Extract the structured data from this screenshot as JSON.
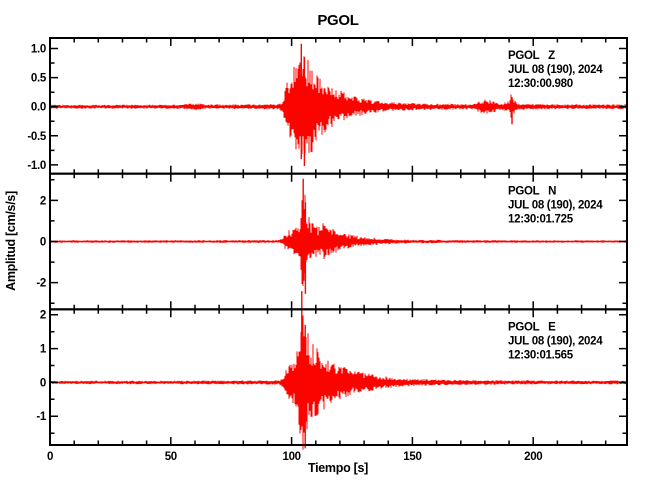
{
  "window": {
    "title": "PGOL"
  },
  "chart_data": {
    "type": "line",
    "title": "PGOL",
    "xlabel": "Tiempo [s]",
    "ylabel": "Amplitud [cm/s/s]",
    "trace_color": "#fb0400",
    "axis_color": "#000000",
    "x_range": [
      0,
      238.8
    ],
    "x_major_ticks": [
      0,
      50,
      100,
      150,
      200
    ],
    "x_major_labels": [
      "0",
      "50",
      "100",
      "150",
      "200"
    ],
    "x_minor_step": 10,
    "grid": false,
    "legend": "none",
    "panels": [
      {
        "station": "PGOL",
        "channel": "Z",
        "date_line": "JUL 08 (190), 2024",
        "time_line": "12:30:00.980",
        "y_range": [
          -1.15,
          1.18
        ],
        "y_major_ticks": [
          1.0,
          0.5,
          0.0,
          -0.5,
          -1.0
        ],
        "y_major_labels": [
          "1.0",
          "0.5",
          "0.0",
          "-0.5",
          "-1.0"
        ],
        "y_minor_step": 0.25,
        "event_onset_s": 97,
        "peak_amplitude": 1.08,
        "noise_envelope": [
          [
            0,
            0.035
          ],
          [
            40,
            0.035
          ],
          [
            55,
            0.04
          ],
          [
            62,
            0.07
          ],
          [
            64,
            0.04
          ],
          [
            80,
            0.04
          ],
          [
            90,
            0.045
          ],
          [
            95,
            0.05
          ],
          [
            96.5,
            0.12
          ],
          [
            97.5,
            0.35
          ],
          [
            99,
            0.55
          ],
          [
            100,
            0.65
          ],
          [
            101,
            0.7
          ],
          [
            102,
            0.8
          ],
          [
            103,
            0.95
          ],
          [
            104,
            1.05
          ],
          [
            105,
            1.0
          ],
          [
            106,
            0.9
          ],
          [
            107,
            0.8
          ],
          [
            108,
            0.85
          ],
          [
            109,
            0.7
          ],
          [
            110,
            0.6
          ],
          [
            112,
            0.52
          ],
          [
            114,
            0.45
          ],
          [
            116,
            0.38
          ],
          [
            118,
            0.33
          ],
          [
            120,
            0.28
          ],
          [
            123,
            0.22
          ],
          [
            126,
            0.18
          ],
          [
            130,
            0.14
          ],
          [
            134,
            0.11
          ],
          [
            138,
            0.09
          ],
          [
            143,
            0.075
          ],
          [
            148,
            0.065
          ],
          [
            155,
            0.055
          ],
          [
            165,
            0.05
          ],
          [
            175,
            0.045
          ],
          [
            178,
            0.1
          ],
          [
            181,
            0.13
          ],
          [
            184,
            0.09
          ],
          [
            187,
            0.06
          ],
          [
            190,
            0.1
          ],
          [
            191,
            0.28
          ],
          [
            192,
            0.12
          ],
          [
            194,
            0.06
          ],
          [
            197,
            0.05
          ],
          [
            205,
            0.045
          ],
          [
            220,
            0.04
          ],
          [
            238.8,
            0.04
          ]
        ],
        "peaks": [
          {
            "t": 104,
            "up": 1.08,
            "down": -0.9
          },
          {
            "t": 105.3,
            "up": 0.85,
            "down": -1.02
          },
          {
            "t": 191.2,
            "up": 0.16,
            "down": -0.3
          }
        ]
      },
      {
        "station": "PGOL",
        "channel": "N",
        "date_line": "JUL 08 (190), 2024",
        "time_line": "12:30:01.725",
        "y_range": [
          -3.3,
          3.3
        ],
        "y_major_ticks": [
          2,
          0,
          -2
        ],
        "y_major_labels": [
          "2",
          "0",
          "-2"
        ],
        "y_minor_step": 1,
        "event_onset_s": 97,
        "peak_amplitude": 3.05,
        "noise_envelope": [
          [
            0,
            0.06
          ],
          [
            60,
            0.065
          ],
          [
            80,
            0.07
          ],
          [
            90,
            0.075
          ],
          [
            95,
            0.08
          ],
          [
            96.5,
            0.2
          ],
          [
            97.5,
            0.45
          ],
          [
            99,
            0.55
          ],
          [
            100,
            0.6
          ],
          [
            101,
            0.65
          ],
          [
            102,
            0.75
          ],
          [
            103,
            0.95
          ],
          [
            104,
            1.6
          ],
          [
            104.8,
            3.0
          ],
          [
            105.6,
            2.5
          ],
          [
            106.5,
            1.5
          ],
          [
            107.5,
            1.1
          ],
          [
            109,
            0.9
          ],
          [
            111,
            0.75
          ],
          [
            113,
            0.95
          ],
          [
            115,
            0.8
          ],
          [
            117,
            0.62
          ],
          [
            119,
            0.5
          ],
          [
            121,
            0.42
          ],
          [
            124,
            0.34
          ],
          [
            127,
            0.28
          ],
          [
            130,
            0.23
          ],
          [
            134,
            0.19
          ],
          [
            138,
            0.15
          ],
          [
            142,
            0.12
          ],
          [
            147,
            0.1
          ],
          [
            152,
            0.09
          ],
          [
            160,
            0.08
          ],
          [
            170,
            0.07
          ],
          [
            185,
            0.065
          ],
          [
            200,
            0.06
          ],
          [
            238.8,
            0.055
          ]
        ],
        "peaks": [
          {
            "t": 104.8,
            "up": 3.05,
            "down": -1.6
          },
          {
            "t": 105.7,
            "up": 1.9,
            "down": -2.55
          }
        ]
      },
      {
        "station": "PGOL",
        "channel": "E",
        "date_line": "JUL 08 (190), 2024",
        "time_line": "12:30:01.565",
        "y_range": [
          -1.85,
          2.16
        ],
        "y_major_ticks": [
          2,
          1,
          0,
          -1
        ],
        "y_major_labels": [
          "2",
          "1",
          "0",
          "-1"
        ],
        "y_minor_step": 0.5,
        "event_onset_s": 97,
        "peak_amplitude": 2.7,
        "noise_envelope": [
          [
            0,
            0.05
          ],
          [
            60,
            0.055
          ],
          [
            80,
            0.06
          ],
          [
            90,
            0.065
          ],
          [
            95,
            0.07
          ],
          [
            96.5,
            0.18
          ],
          [
            97.5,
            0.35
          ],
          [
            99,
            0.5
          ],
          [
            100,
            0.6
          ],
          [
            101,
            0.7
          ],
          [
            102,
            0.85
          ],
          [
            103,
            1.2
          ],
          [
            104,
            2.6
          ],
          [
            105,
            2.2
          ],
          [
            106,
            1.8
          ],
          [
            107,
            1.45
          ],
          [
            108,
            1.25
          ],
          [
            110,
            1.05
          ],
          [
            112,
            0.9
          ],
          [
            114,
            0.78
          ],
          [
            116,
            0.68
          ],
          [
            118,
            0.58
          ],
          [
            120,
            0.5
          ],
          [
            123,
            0.42
          ],
          [
            126,
            0.35
          ],
          [
            129,
            0.3
          ],
          [
            132,
            0.26
          ],
          [
            136,
            0.21
          ],
          [
            140,
            0.17
          ],
          [
            144,
            0.14
          ],
          [
            148,
            0.12
          ],
          [
            153,
            0.1
          ],
          [
            158,
            0.09
          ],
          [
            165,
            0.08
          ],
          [
            175,
            0.075
          ],
          [
            190,
            0.065
          ],
          [
            210,
            0.06
          ],
          [
            238.8,
            0.055
          ]
        ],
        "peaks": [
          {
            "t": 104.2,
            "up": 2.7,
            "down": -1.3
          },
          {
            "t": 105.6,
            "up": 1.7,
            "down": -1.95
          }
        ]
      }
    ]
  }
}
